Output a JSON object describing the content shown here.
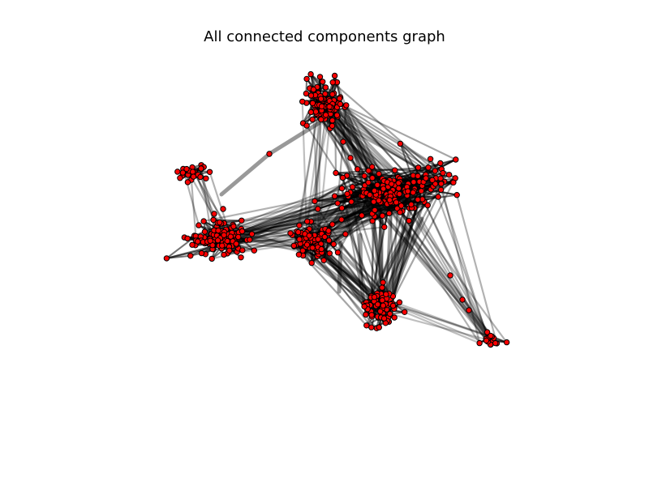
{
  "figure": {
    "title": "All connected components graph"
  },
  "graph": {
    "node_color": "#ff0000",
    "node_edge_color": "#000000",
    "edge_color": "#000000",
    "cluster_names": [
      "top",
      "center-right",
      "upper-left",
      "left",
      "center",
      "bottom",
      "far-right"
    ]
  }
}
